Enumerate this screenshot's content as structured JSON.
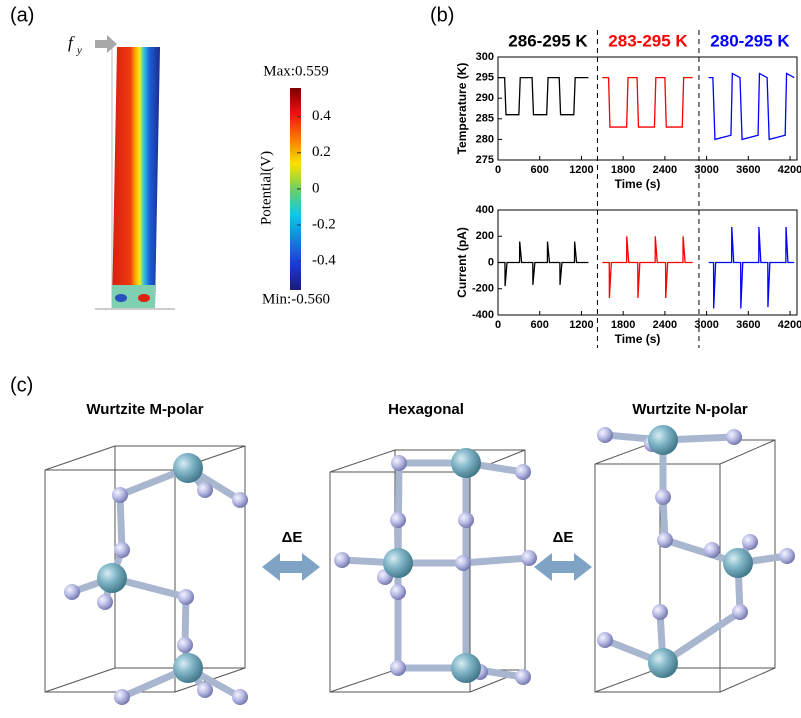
{
  "panel_labels": [
    "(a)",
    "(b)",
    "(c)"
  ],
  "panel_a": {
    "force_label": "f",
    "force_subscript": "y",
    "colorbar": {
      "label": "Potential(V)",
      "max_label": "Max:0.559",
      "min_label": "Min:-0.560",
      "lim": [
        -0.56,
        0.559
      ],
      "ticks": [
        0.4,
        0.2,
        0,
        -0.2,
        -0.4
      ]
    }
  },
  "chart_data": [
    {
      "type": "line",
      "ylabel": "Temperature (K)",
      "xlabel": "Time (s)",
      "xlim": [
        0,
        4300
      ],
      "xticks": [
        0,
        600,
        1200,
        1800,
        2400,
        3000,
        3600,
        4200
      ],
      "ylim": [
        275,
        300
      ],
      "yticks": [
        275,
        280,
        285,
        290,
        295,
        300
      ],
      "dividers": [
        1430,
        2890
      ],
      "series": [
        {
          "name": "286-295 K",
          "color": "#000000",
          "x": [
            0,
            95,
            115,
            300,
            320,
            490,
            510,
            700,
            720,
            880,
            900,
            1090,
            1110,
            1300
          ],
          "values": [
            295,
            295,
            286,
            286,
            295,
            295,
            286,
            286,
            295,
            295,
            286,
            286,
            295,
            295
          ]
        },
        {
          "name": "283-295 K",
          "color": "#ff0000",
          "x": [
            1500,
            1590,
            1610,
            1850,
            1870,
            2000,
            2020,
            2250,
            2270,
            2400,
            2420,
            2650,
            2670,
            2800
          ],
          "values": [
            295,
            295,
            283,
            283,
            295,
            295,
            283,
            283,
            295,
            295,
            283,
            283,
            295,
            295
          ]
        },
        {
          "name": "280-295 K",
          "color": "#0000ff",
          "x": [
            3030,
            3090,
            3120,
            3350,
            3370,
            3480,
            3510,
            3740,
            3760,
            3870,
            3900,
            4130,
            4150,
            4260
          ],
          "values": [
            295,
            295,
            280,
            281,
            296,
            295,
            280,
            281,
            296,
            295,
            280,
            281,
            296,
            295
          ]
        }
      ]
    },
    {
      "type": "line",
      "ylabel": "Current (pA)",
      "xlabel": "Time (s)",
      "xlim": [
        0,
        4300
      ],
      "xticks": [
        0,
        600,
        1200,
        1800,
        2400,
        3000,
        3600,
        4200
      ],
      "ylim": [
        -400,
        400
      ],
      "yticks": [
        -400,
        -200,
        0,
        200,
        400
      ],
      "series": [
        {
          "color": "#000000",
          "x": [
            0,
            100,
            102,
            130,
            310,
            312,
            340,
            500,
            502,
            530,
            710,
            712,
            740,
            890,
            892,
            920,
            1100,
            1102,
            1130,
            1300
          ],
          "values": [
            0,
            0,
            -180,
            0,
            0,
            160,
            0,
            0,
            -170,
            0,
            0,
            160,
            0,
            0,
            -170,
            0,
            0,
            160,
            0,
            0
          ]
        },
        {
          "color": "#ff0000",
          "x": [
            1500,
            1600,
            1602,
            1630,
            1850,
            1852,
            1880,
            2010,
            2012,
            2040,
            2260,
            2262,
            2290,
            2410,
            2412,
            2440,
            2660,
            2662,
            2690,
            2800
          ],
          "values": [
            0,
            0,
            -270,
            0,
            0,
            200,
            0,
            0,
            -270,
            0,
            0,
            200,
            0,
            0,
            -270,
            0,
            0,
            200,
            0,
            0
          ]
        },
        {
          "color": "#0000ff",
          "x": [
            3030,
            3100,
            3102,
            3130,
            3360,
            3362,
            3390,
            3490,
            3492,
            3520,
            3750,
            3752,
            3780,
            3880,
            3882,
            3910,
            4140,
            4142,
            4170,
            4260
          ],
          "values": [
            0,
            0,
            -350,
            0,
            0,
            270,
            0,
            0,
            -350,
            0,
            0,
            270,
            0,
            0,
            -340,
            0,
            0,
            270,
            0,
            0
          ]
        }
      ]
    }
  ],
  "panel_c": {
    "structures": [
      "Wurtzite M-polar",
      "Hexagonal",
      "Wurtzite N-polar"
    ],
    "transitions": [
      "ΔE",
      "ΔE"
    ]
  }
}
